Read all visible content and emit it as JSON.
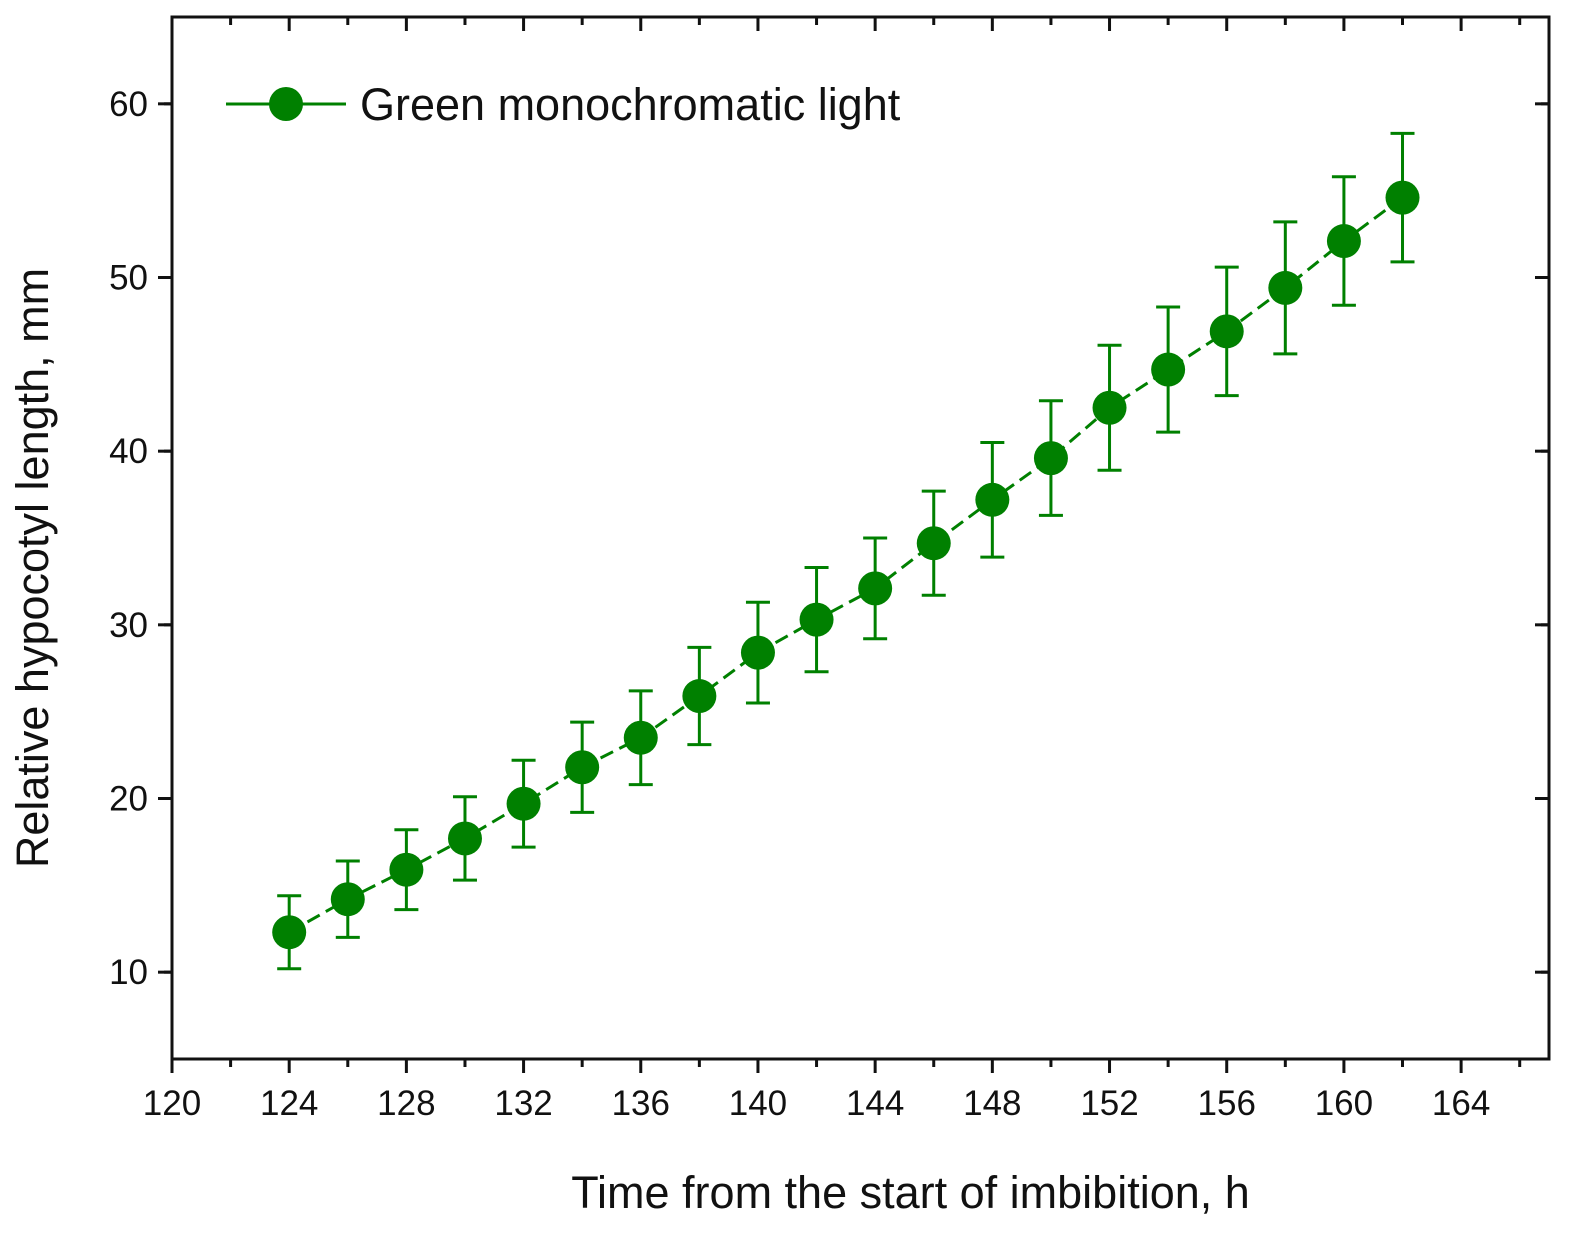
{
  "chart_data": {
    "type": "line",
    "title": "",
    "xlabel": "Time from the start of imbibition, h",
    "ylabel": "Relative hypocotyl length, mm",
    "xlim": [
      120,
      167
    ],
    "ylim": [
      5,
      65
    ],
    "xticks": [
      120,
      124,
      128,
      132,
      136,
      140,
      144,
      148,
      152,
      156,
      160,
      164
    ],
    "yticks": [
      10,
      20,
      30,
      40,
      50,
      60
    ],
    "x_minor_step": 2,
    "y_minor_step": 5,
    "grid": false,
    "legend_position": "top-left",
    "colors": {
      "series": "#008000",
      "axis": "#111111"
    },
    "series": [
      {
        "name": "Green monochromatic light",
        "marker": "circle",
        "line_style": "dashed",
        "x": [
          124,
          126,
          128,
          130,
          132,
          134,
          136,
          138,
          140,
          142,
          144,
          146,
          148,
          150,
          152,
          154,
          156,
          158,
          160,
          162
        ],
        "y": [
          12.3,
          14.2,
          15.9,
          17.7,
          19.7,
          21.8,
          23.5,
          25.9,
          28.4,
          30.3,
          32.1,
          34.7,
          37.2,
          39.6,
          42.5,
          44.7,
          46.9,
          49.4,
          52.1,
          54.6
        ],
        "error": [
          2.1,
          2.2,
          2.3,
          2.4,
          2.5,
          2.6,
          2.7,
          2.8,
          2.9,
          3.0,
          2.9,
          3.0,
          3.3,
          3.3,
          3.6,
          3.6,
          3.7,
          3.8,
          3.7,
          3.7
        ]
      }
    ]
  }
}
